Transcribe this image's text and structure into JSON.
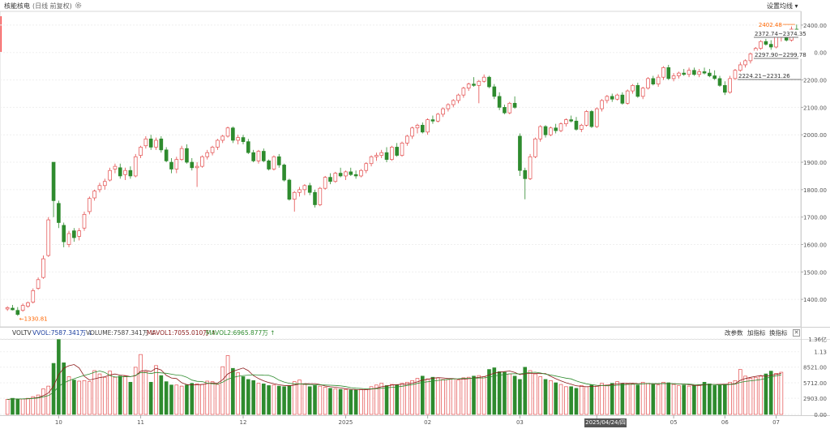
{
  "header": {
    "title": "核能核电",
    "subtitle": "(日线 前复权)",
    "set_ma_label": "设置均线 ▾"
  },
  "volume_legend": {
    "name": "VOLTV",
    "vvol": "VVOL:7587.341万 ↓",
    "volume": "VOLUME:7587.341万 ↓",
    "mavol1": "MAVOL1:7055.010万 ↑",
    "mavol2": "MAVOL2:6965.877万 ↑",
    "btn_params": "改参数",
    "btn_add": "加指标",
    "btn_switch": "换指标",
    "close": "✕"
  },
  "date_flag": "2025/04/24/四",
  "colors": {
    "up": "#e34b4b",
    "down": "#2e8b2e",
    "ma1": "#8b1a1a",
    "ma2": "#2e8b2e",
    "accent": "#ff6600"
  },
  "chart_data": [
    {
      "type": "candlestick",
      "title": "",
      "ylim": [
        1300,
        2450
      ],
      "y_ticks": [
        "2400.00",
        "2300.00",
        "2200.00",
        "2100.00",
        "2000.00",
        "1900.00",
        "1800.00",
        "1700.00",
        "1600.00",
        "1500.00",
        "1400.00"
      ],
      "x_ticks": [
        "10",
        "11",
        "12",
        "2025",
        "02",
        "03",
        "04",
        "05",
        "06",
        "07"
      ],
      "annotations": {
        "max": "2402.48",
        "min": "←1330.81",
        "box1": "2372.74~2374.35",
        "box2": "2297.90~2299.78",
        "box3": "2224.21~2231.26"
      },
      "candles": [
        {
          "o": 1365,
          "h": 1375,
          "l": 1358,
          "c": 1370
        },
        {
          "o": 1368,
          "h": 1380,
          "l": 1360,
          "c": 1362
        },
        {
          "o": 1360,
          "h": 1372,
          "l": 1340,
          "c": 1345
        },
        {
          "o": 1360,
          "h": 1385,
          "l": 1355,
          "c": 1378
        },
        {
          "o": 1375,
          "h": 1392,
          "l": 1370,
          "c": 1388
        },
        {
          "o": 1390,
          "h": 1440,
          "l": 1385,
          "c": 1432
        },
        {
          "o": 1440,
          "h": 1480,
          "l": 1435,
          "c": 1472
        },
        {
          "o": 1480,
          "h": 1560,
          "l": 1475,
          "c": 1548
        },
        {
          "o": 1560,
          "h": 1700,
          "l": 1555,
          "c": 1690
        },
        {
          "o": 1900,
          "h": 1900,
          "l": 1700,
          "c": 1760
        },
        {
          "o": 1750,
          "h": 1760,
          "l": 1660,
          "c": 1680
        },
        {
          "o": 1670,
          "h": 1680,
          "l": 1590,
          "c": 1610
        },
        {
          "o": 1600,
          "h": 1650,
          "l": 1590,
          "c": 1640
        },
        {
          "o": 1650,
          "h": 1660,
          "l": 1610,
          "c": 1625
        },
        {
          "o": 1630,
          "h": 1660,
          "l": 1615,
          "c": 1650
        },
        {
          "o": 1660,
          "h": 1720,
          "l": 1650,
          "c": 1710
        },
        {
          "o": 1720,
          "h": 1775,
          "l": 1710,
          "c": 1768
        },
        {
          "o": 1770,
          "h": 1800,
          "l": 1760,
          "c": 1795
        },
        {
          "o": 1800,
          "h": 1825,
          "l": 1790,
          "c": 1815
        },
        {
          "o": 1815,
          "h": 1840,
          "l": 1800,
          "c": 1830
        },
        {
          "o": 1835,
          "h": 1880,
          "l": 1830,
          "c": 1870
        },
        {
          "o": 1875,
          "h": 1895,
          "l": 1860,
          "c": 1885
        },
        {
          "o": 1880,
          "h": 1895,
          "l": 1840,
          "c": 1850
        },
        {
          "o": 1855,
          "h": 1880,
          "l": 1835,
          "c": 1870
        },
        {
          "o": 1870,
          "h": 1885,
          "l": 1840,
          "c": 1850
        },
        {
          "o": 1850,
          "h": 1930,
          "l": 1845,
          "c": 1920
        },
        {
          "o": 1925,
          "h": 1960,
          "l": 1915,
          "c": 1955
        },
        {
          "o": 1960,
          "h": 1995,
          "l": 1950,
          "c": 1985
        },
        {
          "o": 1985,
          "h": 2000,
          "l": 1945,
          "c": 1955
        },
        {
          "o": 1955,
          "h": 1990,
          "l": 1945,
          "c": 1980
        },
        {
          "o": 1985,
          "h": 1995,
          "l": 1935,
          "c": 1945
        },
        {
          "o": 1945,
          "h": 1955,
          "l": 1900,
          "c": 1905
        },
        {
          "o": 1900,
          "h": 1915,
          "l": 1860,
          "c": 1875
        },
        {
          "o": 1875,
          "h": 1920,
          "l": 1860,
          "c": 1910
        },
        {
          "o": 1910,
          "h": 1960,
          "l": 1905,
          "c": 1950
        },
        {
          "o": 1950,
          "h": 1965,
          "l": 1895,
          "c": 1900
        },
        {
          "o": 1900,
          "h": 1915,
          "l": 1870,
          "c": 1880
        },
        {
          "o": 1880,
          "h": 1900,
          "l": 1810,
          "c": 1885
        },
        {
          "o": 1885,
          "h": 1925,
          "l": 1880,
          "c": 1920
        },
        {
          "o": 1920,
          "h": 1945,
          "l": 1910,
          "c": 1935
        },
        {
          "o": 1935,
          "h": 1960,
          "l": 1925,
          "c": 1955
        },
        {
          "o": 1955,
          "h": 1985,
          "l": 1945,
          "c": 1980
        },
        {
          "o": 1980,
          "h": 2000,
          "l": 1970,
          "c": 1995
        },
        {
          "o": 1995,
          "h": 2030,
          "l": 1990,
          "c": 2025
        },
        {
          "o": 2025,
          "h": 2030,
          "l": 1970,
          "c": 1980
        },
        {
          "o": 1980,
          "h": 2000,
          "l": 1965,
          "c": 1990
        },
        {
          "o": 1990,
          "h": 2000,
          "l": 1965,
          "c": 1975
        },
        {
          "o": 1975,
          "h": 1985,
          "l": 1930,
          "c": 1935
        },
        {
          "o": 1935,
          "h": 1945,
          "l": 1900,
          "c": 1905
        },
        {
          "o": 1905,
          "h": 1945,
          "l": 1895,
          "c": 1940
        },
        {
          "o": 1940,
          "h": 1950,
          "l": 1900,
          "c": 1905
        },
        {
          "o": 1905,
          "h": 1910,
          "l": 1870,
          "c": 1875
        },
        {
          "o": 1875,
          "h": 1925,
          "l": 1870,
          "c": 1920
        },
        {
          "o": 1920,
          "h": 1930,
          "l": 1880,
          "c": 1890
        },
        {
          "o": 1890,
          "h": 1895,
          "l": 1830,
          "c": 1835
        },
        {
          "o": 1835,
          "h": 1840,
          "l": 1760,
          "c": 1765
        },
        {
          "o": 1765,
          "h": 1795,
          "l": 1720,
          "c": 1790
        },
        {
          "o": 1790,
          "h": 1810,
          "l": 1775,
          "c": 1800
        },
        {
          "o": 1800,
          "h": 1820,
          "l": 1780,
          "c": 1815
        },
        {
          "o": 1815,
          "h": 1825,
          "l": 1780,
          "c": 1790
        },
        {
          "o": 1790,
          "h": 1800,
          "l": 1735,
          "c": 1745
        },
        {
          "o": 1745,
          "h": 1810,
          "l": 1740,
          "c": 1805
        },
        {
          "o": 1805,
          "h": 1850,
          "l": 1800,
          "c": 1845
        },
        {
          "o": 1845,
          "h": 1860,
          "l": 1820,
          "c": 1830
        },
        {
          "o": 1830,
          "h": 1865,
          "l": 1825,
          "c": 1860
        },
        {
          "o": 1860,
          "h": 1880,
          "l": 1845,
          "c": 1850
        },
        {
          "o": 1850,
          "h": 1870,
          "l": 1835,
          "c": 1865
        },
        {
          "o": 1865,
          "h": 1880,
          "l": 1850,
          "c": 1855
        },
        {
          "o": 1855,
          "h": 1870,
          "l": 1840,
          "c": 1850
        },
        {
          "o": 1850,
          "h": 1875,
          "l": 1845,
          "c": 1870
        },
        {
          "o": 1870,
          "h": 1900,
          "l": 1860,
          "c": 1895
        },
        {
          "o": 1895,
          "h": 1925,
          "l": 1885,
          "c": 1920
        },
        {
          "o": 1920,
          "h": 1935,
          "l": 1905,
          "c": 1925
        },
        {
          "o": 1925,
          "h": 1945,
          "l": 1915,
          "c": 1935
        },
        {
          "o": 1935,
          "h": 1955,
          "l": 1900,
          "c": 1910
        },
        {
          "o": 1910,
          "h": 1960,
          "l": 1905,
          "c": 1955
        },
        {
          "o": 1955,
          "h": 1970,
          "l": 1920,
          "c": 1925
        },
        {
          "o": 1925,
          "h": 1975,
          "l": 1920,
          "c": 1970
        },
        {
          "o": 1970,
          "h": 2000,
          "l": 1960,
          "c": 1995
        },
        {
          "o": 1995,
          "h": 2030,
          "l": 1985,
          "c": 2025
        },
        {
          "o": 2025,
          "h": 2040,
          "l": 2005,
          "c": 2035
        },
        {
          "o": 2035,
          "h": 2045,
          "l": 2005,
          "c": 2010
        },
        {
          "o": 2010,
          "h": 2060,
          "l": 2000,
          "c": 2055
        },
        {
          "o": 2055,
          "h": 2070,
          "l": 2040,
          "c": 2050
        },
        {
          "o": 2050,
          "h": 2080,
          "l": 2045,
          "c": 2075
        },
        {
          "o": 2075,
          "h": 2100,
          "l": 2065,
          "c": 2095
        },
        {
          "o": 2095,
          "h": 2115,
          "l": 2085,
          "c": 2110
        },
        {
          "o": 2110,
          "h": 2130,
          "l": 2100,
          "c": 2125
        },
        {
          "o": 2125,
          "h": 2150,
          "l": 2115,
          "c": 2145
        },
        {
          "o": 2145,
          "h": 2175,
          "l": 2135,
          "c": 2170
        },
        {
          "o": 2170,
          "h": 2190,
          "l": 2160,
          "c": 2185
        },
        {
          "o": 2185,
          "h": 2210,
          "l": 2175,
          "c": 2180
        },
        {
          "o": 2180,
          "h": 2200,
          "l": 2115,
          "c": 2195
        },
        {
          "o": 2195,
          "h": 2220,
          "l": 2190,
          "c": 2210
        },
        {
          "o": 2210,
          "h": 2215,
          "l": 2170,
          "c": 2175
        },
        {
          "o": 2175,
          "h": 2185,
          "l": 2130,
          "c": 2140
        },
        {
          "o": 2140,
          "h": 2155,
          "l": 2090,
          "c": 2100
        },
        {
          "o": 2100,
          "h": 2110,
          "l": 2075,
          "c": 2080
        },
        {
          "o": 2080,
          "h": 2120,
          "l": 2075,
          "c": 2115
        },
        {
          "o": 2115,
          "h": 2140,
          "l": 2095,
          "c": 2100
        },
        {
          "o": 1995,
          "h": 2005,
          "l": 1850,
          "c": 1870
        },
        {
          "o": 1870,
          "h": 1880,
          "l": 1765,
          "c": 1840
        },
        {
          "o": 1840,
          "h": 1930,
          "l": 1835,
          "c": 1920
        },
        {
          "o": 1920,
          "h": 1990,
          "l": 1915,
          "c": 1985
        },
        {
          "o": 1985,
          "h": 2035,
          "l": 1975,
          "c": 2030
        },
        {
          "o": 2030,
          "h": 2035,
          "l": 1990,
          "c": 2000
        },
        {
          "o": 2000,
          "h": 2030,
          "l": 1995,
          "c": 2025
        },
        {
          "o": 2025,
          "h": 2040,
          "l": 2005,
          "c": 2015
        },
        {
          "o": 2015,
          "h": 2045,
          "l": 2010,
          "c": 2040
        },
        {
          "o": 2040,
          "h": 2060,
          "l": 2030,
          "c": 2055
        },
        {
          "o": 2055,
          "h": 2070,
          "l": 2045,
          "c": 2050
        },
        {
          "o": 2050,
          "h": 2065,
          "l": 2015,
          "c": 2020
        },
        {
          "o": 2020,
          "h": 2040,
          "l": 2010,
          "c": 2035
        },
        {
          "o": 2035,
          "h": 2090,
          "l": 2030,
          "c": 2085
        },
        {
          "o": 2085,
          "h": 2090,
          "l": 2025,
          "c": 2030
        },
        {
          "o": 2030,
          "h": 2100,
          "l": 2025,
          "c": 2095
        },
        {
          "o": 2095,
          "h": 2130,
          "l": 2085,
          "c": 2125
        },
        {
          "o": 2125,
          "h": 2145,
          "l": 2115,
          "c": 2140
        },
        {
          "o": 2140,
          "h": 2150,
          "l": 2120,
          "c": 2130
        },
        {
          "o": 2130,
          "h": 2150,
          "l": 2125,
          "c": 2145
        },
        {
          "o": 2145,
          "h": 2155,
          "l": 2110,
          "c": 2115
        },
        {
          "o": 2115,
          "h": 2165,
          "l": 2110,
          "c": 2160
        },
        {
          "o": 2160,
          "h": 2185,
          "l": 2150,
          "c": 2180
        },
        {
          "o": 2180,
          "h": 2190,
          "l": 2135,
          "c": 2140
        },
        {
          "o": 2140,
          "h": 2175,
          "l": 2130,
          "c": 2170
        },
        {
          "o": 2170,
          "h": 2210,
          "l": 2165,
          "c": 2205
        },
        {
          "o": 2205,
          "h": 2215,
          "l": 2180,
          "c": 2185
        },
        {
          "o": 2185,
          "h": 2220,
          "l": 2175,
          "c": 2210
        },
        {
          "o": 2210,
          "h": 2250,
          "l": 2200,
          "c": 2245
        },
        {
          "o": 2245,
          "h": 2255,
          "l": 2200,
          "c": 2205
        },
        {
          "o": 2205,
          "h": 2225,
          "l": 2195,
          "c": 2215
        },
        {
          "o": 2215,
          "h": 2230,
          "l": 2205,
          "c": 2225
        },
        {
          "o": 2225,
          "h": 2240,
          "l": 2215,
          "c": 2220
        },
        {
          "o": 2220,
          "h": 2245,
          "l": 2210,
          "c": 2235
        },
        {
          "o": 2235,
          "h": 2245,
          "l": 2215,
          "c": 2220
        },
        {
          "o": 2220,
          "h": 2240,
          "l": 2210,
          "c": 2230
        },
        {
          "o": 2230,
          "h": 2245,
          "l": 2220,
          "c": 2225
        },
        {
          "o": 2225,
          "h": 2240,
          "l": 2210,
          "c": 2215
        },
        {
          "o": 2215,
          "h": 2235,
          "l": 2200,
          "c": 2205
        },
        {
          "o": 2205,
          "h": 2215,
          "l": 2175,
          "c": 2180
        },
        {
          "o": 2180,
          "h": 2195,
          "l": 2145,
          "c": 2155
        },
        {
          "o": 2155,
          "h": 2215,
          "l": 2150,
          "c": 2205
        },
        {
          "o": 2205,
          "h": 2240,
          "l": 2200,
          "c": 2235
        },
        {
          "o": 2235,
          "h": 2265,
          "l": 2230,
          "c": 2255
        },
        {
          "o": 2255,
          "h": 2275,
          "l": 2245,
          "c": 2270
        },
        {
          "o": 2270,
          "h": 2300,
          "l": 2260,
          "c": 2295
        },
        {
          "o": 2295,
          "h": 2320,
          "l": 2285,
          "c": 2315
        },
        {
          "o": 2315,
          "h": 2345,
          "l": 2310,
          "c": 2340
        },
        {
          "o": 2340,
          "h": 2350,
          "l": 2325,
          "c": 2330
        },
        {
          "o": 2330,
          "h": 2345,
          "l": 2310,
          "c": 2320
        },
        {
          "o": 2320,
          "h": 2365,
          "l": 2315,
          "c": 2355
        },
        {
          "o": 2355,
          "h": 2370,
          "l": 2340,
          "c": 2365
        },
        {
          "o": 2365,
          "h": 2380,
          "l": 2340,
          "c": 2345
        },
        {
          "o": 2345,
          "h": 2395,
          "l": 2340,
          "c": 2385
        },
        {
          "o": 2385,
          "h": 2402,
          "l": 2375,
          "c": 2380
        }
      ]
    },
    {
      "type": "bar",
      "title": "",
      "y_ticks": [
        "1.36亿",
        "1.13",
        "8521.00",
        "5712.00",
        "2903.00",
        "0.00"
      ],
      "ylim": [
        0,
        13600
      ],
      "unit": "万",
      "values": [
        2700,
        2900,
        2800,
        2800,
        2900,
        3200,
        3500,
        4600,
        5100,
        9200,
        13500,
        9300,
        6800,
        6200,
        6000,
        6100,
        5900,
        7900,
        7300,
        6700,
        7800,
        6700,
        6900,
        6900,
        5800,
        8500,
        10800,
        7700,
        5800,
        8800,
        7000,
        5900,
        5300,
        5300,
        5100,
        5300,
        5600,
        5500,
        5400,
        6000,
        5900,
        5400,
        8600,
        10600,
        8300,
        7500,
        6800,
        6300,
        6100,
        5600,
        5500,
        5200,
        5300,
        5100,
        5000,
        5200,
        5900,
        6200,
        5400,
        5000,
        5200,
        5100,
        4900,
        4700,
        4600,
        4500,
        4500,
        4400,
        4400,
        4500,
        4500,
        5000,
        5300,
        5600,
        5200,
        5400,
        5300,
        5600,
        5800,
        6100,
        6500,
        6900,
        6400,
        6700,
        6600,
        6300,
        6300,
        6400,
        6200,
        6600,
        6700,
        6900,
        7000,
        6800,
        8100,
        8400,
        7700,
        7600,
        7300,
        6900,
        6300,
        8500,
        7900,
        7300,
        6800,
        6300,
        6100,
        5700,
        5400,
        5000,
        5000,
        4700,
        5200,
        5000,
        5300,
        5100,
        5600,
        5300,
        5600,
        5900,
        5600,
        5500,
        5500,
        5300,
        5800,
        5600,
        5400,
        5300,
        5800,
        5700,
        5400,
        5200,
        5300,
        5100,
        5200,
        5300,
        5800,
        5500,
        5200,
        5300,
        5400,
        5800,
        6100,
        8100,
        6900,
        6500,
        6700,
        6900,
        7300,
        7800,
        7400,
        7600
      ]
    }
  ]
}
